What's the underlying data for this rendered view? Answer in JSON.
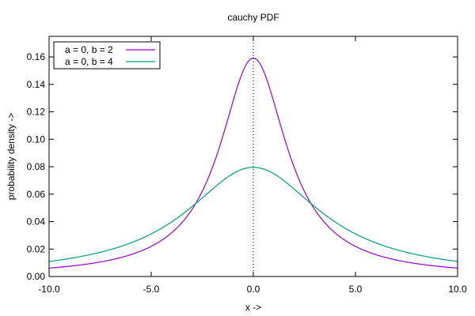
{
  "chart_data": {
    "type": "line",
    "title": "cauchy PDF",
    "xlabel": "x ->",
    "ylabel": "probability density ->",
    "xlim": [
      -10,
      10
    ],
    "ylim": [
      0,
      0.175
    ],
    "x_ticks": [
      -10,
      -5,
      0,
      5,
      10
    ],
    "x_tick_labels": [
      "-10.0",
      "-5.0",
      "0.0",
      "5.0",
      "10.0"
    ],
    "y_ticks": [
      0,
      0.02,
      0.04,
      0.06,
      0.08,
      0.1,
      0.12,
      0.14,
      0.16
    ],
    "y_tick_labels": [
      "0.00",
      "0.02",
      "0.04",
      "0.06",
      "0.08",
      "0.10",
      "0.12",
      "0.14",
      "0.16"
    ],
    "grid": false,
    "legend_position": "top-left",
    "vertical_reference_line": {
      "x": 0,
      "style": "dotted"
    },
    "series": [
      {
        "name": "a = 0, b = 2",
        "a": 0,
        "b": 2,
        "color": "#9400d3"
      },
      {
        "name": "a = 0, b = 4",
        "a": 0,
        "b": 4,
        "color": "#009e73"
      }
    ]
  }
}
